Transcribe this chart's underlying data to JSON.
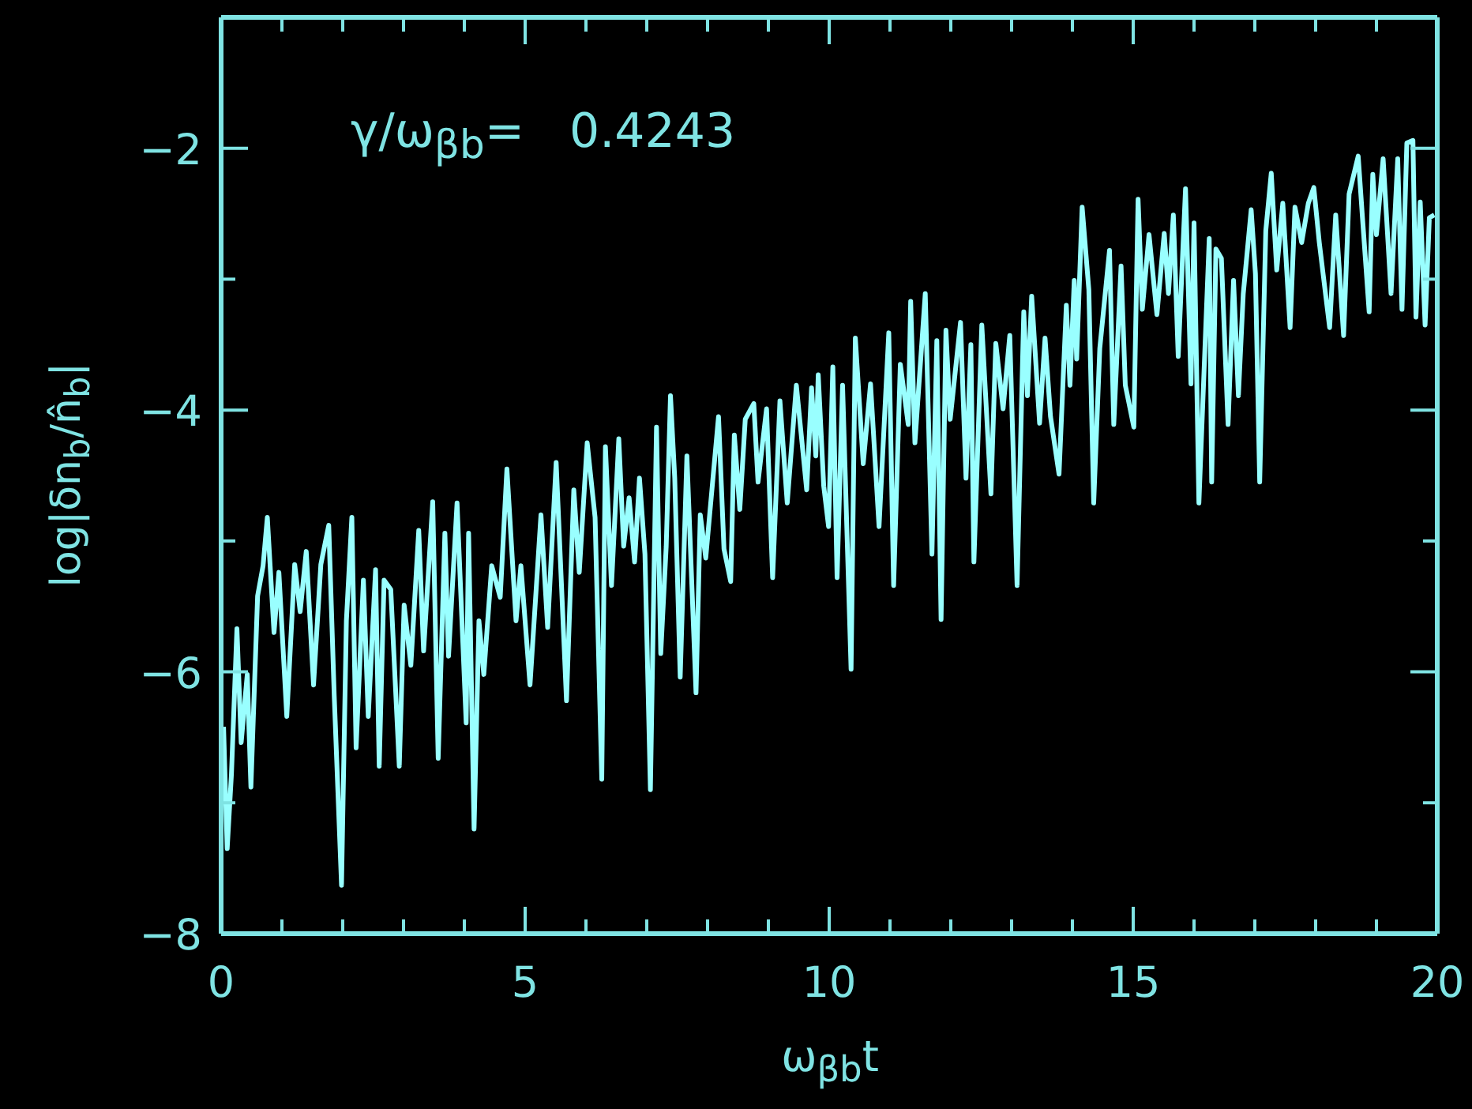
{
  "chart_data": {
    "type": "line",
    "xlabel": "ω$_{βb}$t",
    "ylabel": "log|δn$_{b}$/n̂$_{b}$|",
    "annotations": [
      "γ/ω$_{βb}$=   0.4243"
    ],
    "xlim": [
      0,
      20
    ],
    "ylim": [
      -8,
      -1
    ],
    "xticks": [
      0,
      {
        "value": 1,
        "label": null
      },
      {
        "value": 2,
        "label": null
      },
      {
        "value": 3,
        "label": null
      },
      {
        "value": 4,
        "label": null
      },
      5,
      {
        "value": 6,
        "label": null
      },
      {
        "value": 7,
        "label": null
      },
      {
        "value": 8,
        "label": null
      },
      {
        "value": 9,
        "label": null
      },
      10,
      {
        "value": 11,
        "label": null
      },
      {
        "value": 12,
        "label": null
      },
      {
        "value": 13,
        "label": null
      },
      {
        "value": 14,
        "label": null
      },
      15,
      {
        "value": 16,
        "label": null
      },
      {
        "value": 17,
        "label": null
      },
      {
        "value": 18,
        "label": null
      },
      {
        "value": 19,
        "label": null
      },
      20
    ],
    "yticks": [
      -8,
      {
        "value": -7,
        "label": null
      },
      -6,
      {
        "value": -5,
        "label": null
      },
      -4,
      {
        "value": -3,
        "label": null
      },
      -2
    ],
    "marker": "none",
    "line_style": "solid",
    "series": [
      {
        "color": "#99ffff",
        "x": [
          0.04,
          0.1,
          0.17,
          0.26,
          0.33,
          0.43,
          0.49,
          0.6,
          0.69,
          0.76,
          0.87,
          0.95,
          1.08,
          1.21,
          1.3,
          1.4,
          1.52,
          1.64,
          1.77,
          1.86,
          1.98,
          2.06,
          2.15,
          2.22,
          2.34,
          2.42,
          2.54,
          2.6,
          2.68,
          2.79,
          2.93,
          3.01,
          3.12,
          3.25,
          3.33,
          3.48,
          3.57,
          3.68,
          3.74,
          3.88,
          4.03,
          4.07,
          4.16,
          4.24,
          4.32,
          4.45,
          4.59,
          4.7,
          4.85,
          4.93,
          5.08,
          5.26,
          5.37,
          5.51,
          5.68,
          5.8,
          5.89,
          6.02,
          6.15,
          6.26,
          6.32,
          6.42,
          6.54,
          6.62,
          6.71,
          6.8,
          6.88,
          6.97,
          7.06,
          7.16,
          7.23,
          7.32,
          7.39,
          7.46,
          7.55,
          7.66,
          7.81,
          7.88,
          7.97,
          8.18,
          8.27,
          8.38,
          8.44,
          8.53,
          8.62,
          8.76,
          8.83,
          8.97,
          9.07,
          9.19,
          9.31,
          9.46,
          9.63,
          9.71,
          9.78,
          9.82,
          9.91,
          9.99,
          10.06,
          10.13,
          10.22,
          10.36,
          10.43,
          10.56,
          10.68,
          10.82,
          10.98,
          11.06,
          11.17,
          11.3,
          11.34,
          11.41,
          11.58,
          11.69,
          11.77,
          11.84,
          11.92,
          11.99,
          12.16,
          12.25,
          12.33,
          12.38,
          12.51,
          12.66,
          12.74,
          12.86,
          12.97,
          13.09,
          13.2,
          13.26,
          13.33,
          13.46,
          13.55,
          13.64,
          13.78,
          13.9,
          13.96,
          14.03,
          14.07,
          14.16,
          14.27,
          14.35,
          14.45,
          14.61,
          14.68,
          14.8,
          14.87,
          15.01,
          15.08,
          15.15,
          15.26,
          15.39,
          15.51,
          15.58,
          15.66,
          15.74,
          15.86,
          15.95,
          16.0,
          16.08,
          16.25,
          16.29,
          16.36,
          16.45,
          16.56,
          16.65,
          16.73,
          16.81,
          16.94,
          17.01,
          17.08,
          17.18,
          17.27,
          17.36,
          17.46,
          17.58,
          17.66,
          17.77,
          17.88,
          17.97,
          18.06,
          18.23,
          18.33,
          18.46,
          18.55,
          18.7,
          18.77,
          18.88,
          18.94,
          19.0,
          19.11,
          19.24,
          19.35,
          19.42,
          19.5,
          19.6,
          19.65,
          19.72,
          19.8,
          19.87,
          19.95
        ],
        "values": [
          -6.42,
          -7.35,
          -6.78,
          -5.67,
          -6.54,
          -6.02,
          -6.88,
          -5.42,
          -5.19,
          -4.82,
          -5.7,
          -5.24,
          -6.34,
          -5.18,
          -5.54,
          -5.08,
          -6.1,
          -5.18,
          -4.88,
          -6.18,
          -7.63,
          -5.61,
          -4.82,
          -6.58,
          -5.3,
          -6.34,
          -5.22,
          -6.72,
          -5.3,
          -5.37,
          -6.72,
          -5.49,
          -5.95,
          -4.92,
          -5.84,
          -4.7,
          -6.66,
          -4.94,
          -5.88,
          -4.71,
          -6.39,
          -4.94,
          -7.2,
          -5.61,
          -6.02,
          -5.19,
          -5.43,
          -4.45,
          -5.61,
          -5.19,
          -6.1,
          -4.8,
          -5.66,
          -4.4,
          -6.22,
          -4.61,
          -5.24,
          -4.25,
          -4.82,
          -6.82,
          -4.28,
          -5.34,
          -4.22,
          -5.04,
          -4.67,
          -5.16,
          -4.52,
          -5.1,
          -6.9,
          -4.13,
          -5.86,
          -5.04,
          -3.89,
          -4.52,
          -6.04,
          -4.35,
          -6.16,
          -4.8,
          -5.13,
          -4.05,
          -5.06,
          -5.31,
          -4.19,
          -4.76,
          -4.07,
          -3.95,
          -4.55,
          -3.99,
          -5.28,
          -3.93,
          -4.71,
          -3.81,
          -4.61,
          -3.83,
          -4.35,
          -3.73,
          -4.58,
          -4.89,
          -3.67,
          -5.28,
          -3.81,
          -5.98,
          -3.45,
          -4.41,
          -3.8,
          -4.89,
          -3.41,
          -5.34,
          -3.65,
          -4.11,
          -3.17,
          -4.25,
          -3.11,
          -5.1,
          -3.47,
          -5.6,
          -3.39,
          -4.07,
          -3.33,
          -4.52,
          -3.5,
          -5.16,
          -3.35,
          -4.64,
          -3.49,
          -3.99,
          -3.43,
          -5.34,
          -3.25,
          -3.89,
          -3.13,
          -4.1,
          -3.45,
          -4.05,
          -4.49,
          -3.2,
          -3.81,
          -3.01,
          -3.61,
          -2.45,
          -3.08,
          -4.71,
          -3.53,
          -2.78,
          -4.11,
          -2.9,
          -3.81,
          -4.13,
          -2.39,
          -3.23,
          -2.66,
          -3.27,
          -2.65,
          -3.11,
          -2.51,
          -3.59,
          -2.31,
          -3.8,
          -2.57,
          -4.71,
          -2.69,
          -4.55,
          -2.77,
          -2.84,
          -4.11,
          -3.01,
          -3.89,
          -3.11,
          -2.47,
          -2.96,
          -4.55,
          -2.63,
          -2.19,
          -2.93,
          -2.42,
          -3.37,
          -2.45,
          -2.72,
          -2.42,
          -2.3,
          -2.72,
          -3.37,
          -2.51,
          -3.43,
          -2.35,
          -2.06,
          -2.53,
          -3.25,
          -2.2,
          -2.66,
          -2.08,
          -3.11,
          -2.08,
          -3.23,
          -1.96,
          -1.94,
          -3.29,
          -2.41,
          -3.35,
          -2.53,
          -2.51
        ]
      }
    ]
  }
}
